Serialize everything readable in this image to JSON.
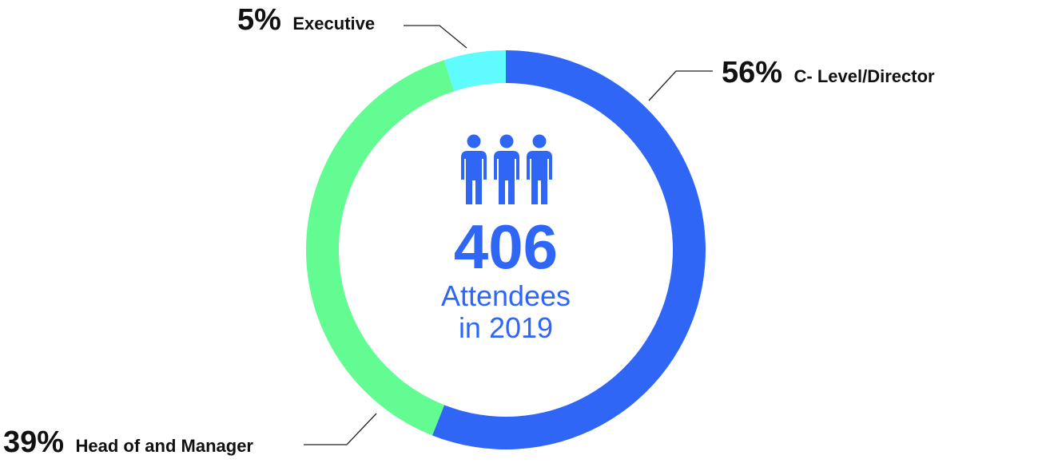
{
  "chart_data": {
    "type": "pie",
    "style": "donut",
    "categories": [
      "C- Level/Director",
      "Head of and Manager",
      "Executive"
    ],
    "values": [
      56,
      39,
      5
    ],
    "labels": [
      {
        "percent": "56%",
        "category": "C- Level/Director"
      },
      {
        "percent": "39%",
        "category": "Head of and Manager"
      },
      {
        "percent": "5%",
        "category": "Executive"
      }
    ],
    "colors": [
      "#2f66f6",
      "#62fc93",
      "#5ffbff"
    ],
    "center": {
      "icon": "three-people-icon",
      "number": "406",
      "line1": "Attendees",
      "line2": "in 2019",
      "text_color": "#2f66f6"
    }
  }
}
